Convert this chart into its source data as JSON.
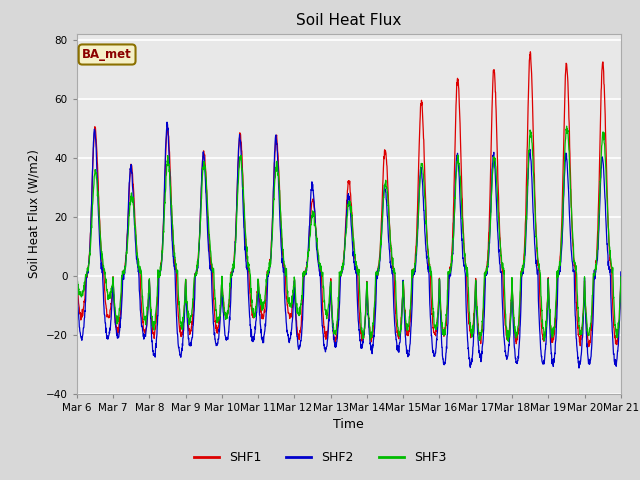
{
  "title": "Soil Heat Flux",
  "ylabel": "Soil Heat Flux (W/m2)",
  "xlabel": "Time",
  "ylim": [
    -40,
    82
  ],
  "yticks": [
    -40,
    -20,
    0,
    20,
    40,
    60,
    80
  ],
  "figure_bg": "#d8d8d8",
  "plot_bg": "#e8e8e8",
  "legend_label": "BA_met",
  "legend_text_color": "#8B0000",
  "legend_box_color": "#f5f0c8",
  "legend_edge_color": "#8B7000",
  "series_colors": [
    "#dd0000",
    "#0000cc",
    "#00bb00"
  ],
  "series_names": [
    "SHF1",
    "SHF2",
    "SHF3"
  ],
  "n_days": 15,
  "start_day": 6,
  "pts_per_day": 144,
  "grid_color": "#ffffff",
  "spine_color": "#aaaaaa"
}
